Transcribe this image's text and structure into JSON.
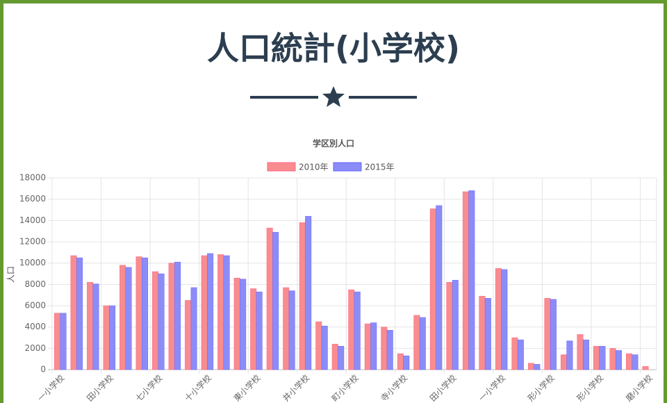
{
  "page_title": "人口統計(小学校)",
  "chart_data": {
    "type": "bar",
    "title": "学区別人口",
    "y_label": "人口",
    "categories": [
      "一小学校",
      null,
      null,
      "田小学校",
      null,
      null,
      "七小学校",
      null,
      null,
      "十小学校",
      null,
      null,
      "東小学校",
      null,
      null,
      "井小学校",
      null,
      null,
      "町小学校",
      null,
      null,
      "寺小学校",
      null,
      null,
      "田小学校",
      null,
      null,
      "一小学校",
      null,
      null,
      "形小学校",
      null,
      null,
      "形小学校",
      null,
      null,
      "磨小学校"
    ],
    "series": [
      {
        "name": "2010年",
        "color": "#f88c8f",
        "border": "#ff6384",
        "values": [
          5300,
          10700,
          8200,
          6000,
          9800,
          10600,
          9200,
          10000,
          6500,
          10700,
          10800,
          8600,
          7600,
          13300,
          7700,
          13800,
          4500,
          2400,
          7500,
          4300,
          4000,
          1500,
          5100,
          15100,
          8200,
          16700,
          6900,
          9500,
          3000,
          600,
          6700,
          1400,
          3300,
          2200,
          2000,
          1500,
          300
        ]
      },
      {
        "name": "2015年",
        "color": "#8c8cf8",
        "border": "#6464ff",
        "values": [
          5300,
          10500,
          8050,
          6000,
          9600,
          10500,
          9000,
          10100,
          7700,
          10900,
          10700,
          8500,
          7300,
          12900,
          7400,
          14400,
          4100,
          2200,
          7300,
          4400,
          3700,
          1300,
          4900,
          15400,
          8400,
          16800,
          6700,
          9400,
          2800,
          500,
          6600,
          2700,
          2800,
          2200,
          1800,
          1400,
          0
        ]
      }
    ],
    "ylim": [
      0,
      18000
    ],
    "yticks": [
      0,
      2000,
      4000,
      6000,
      8000,
      10000,
      12000,
      14000,
      16000,
      18000
    ],
    "grid": true,
    "legend": "top"
  }
}
